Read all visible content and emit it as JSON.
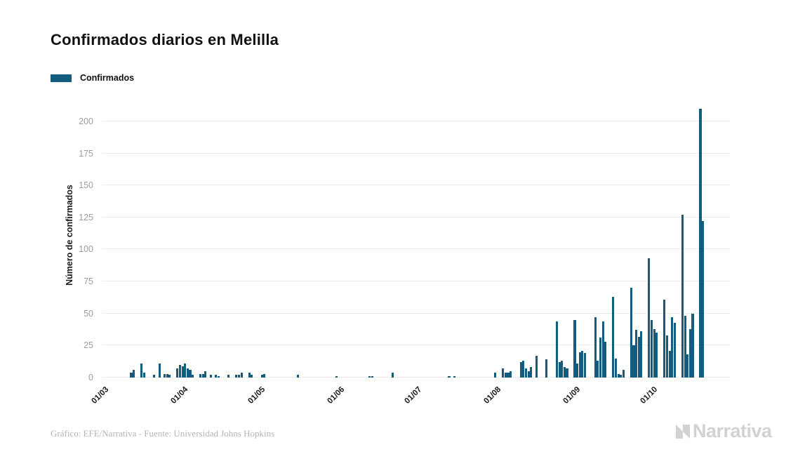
{
  "title": "Confirmados diarios en Melilla",
  "legend": {
    "label": "Confirmados",
    "swatch_color": "#135C7D"
  },
  "footer": {
    "credit": "Gráfico: EFE/Narrativa - Fuente: Universidad Johns Hopkins"
  },
  "logo": {
    "text": "Narrativa"
  },
  "chart_data": {
    "type": "bar",
    "title": "Confirmados diarios en Melilla",
    "xlabel": "",
    "ylabel": "Número de confirmados",
    "series_name": "Confirmados",
    "bar_color": "#135C7D",
    "grid": "horizontal",
    "legend_position": "top-left",
    "ylim": [
      0,
      218
    ],
    "yticks": [
      0,
      25,
      50,
      75,
      100,
      125,
      150,
      175,
      200
    ],
    "x_axis": {
      "description": "daily bars, day_index 0 = 01/03, axis extends to ~245 slots",
      "total_slots": 245,
      "ticks": [
        {
          "label": "01/03",
          "day_index": 0
        },
        {
          "label": "01/04",
          "day_index": 31
        },
        {
          "label": "01/05",
          "day_index": 61
        },
        {
          "label": "01/06",
          "day_index": 92
        },
        {
          "label": "01/07",
          "day_index": 122
        },
        {
          "label": "01/08",
          "day_index": 153
        },
        {
          "label": "01/09",
          "day_index": 184
        },
        {
          "label": "01/10",
          "day_index": 214
        }
      ]
    },
    "points_format": [
      "day_index",
      "date_dd_mm",
      "value"
    ],
    "points": [
      [
        11,
        "12/03",
        4
      ],
      [
        12,
        "13/03",
        6
      ],
      [
        15,
        "16/03",
        11
      ],
      [
        16,
        "17/03",
        4
      ],
      [
        20,
        "21/03",
        2
      ],
      [
        22,
        "23/03",
        11
      ],
      [
        24,
        "25/03",
        3
      ],
      [
        25,
        "26/03",
        3
      ],
      [
        26,
        "27/03",
        2
      ],
      [
        29,
        "30/03",
        7
      ],
      [
        30,
        "31/03",
        10
      ],
      [
        31,
        "01/04",
        9
      ],
      [
        32,
        "02/04",
        11
      ],
      [
        33,
        "03/04",
        7
      ],
      [
        34,
        "04/04",
        6
      ],
      [
        35,
        "05/04",
        2
      ],
      [
        38,
        "08/04",
        3
      ],
      [
        39,
        "09/04",
        3
      ],
      [
        40,
        "10/04",
        5
      ],
      [
        42,
        "12/04",
        2
      ],
      [
        44,
        "14/04",
        2
      ],
      [
        45,
        "15/04",
        1
      ],
      [
        49,
        "19/04",
        2
      ],
      [
        52,
        "22/04",
        2
      ],
      [
        53,
        "23/04",
        2
      ],
      [
        54,
        "24/04",
        4
      ],
      [
        57,
        "27/04",
        4
      ],
      [
        58,
        "28/04",
        2
      ],
      [
        62,
        "02/05",
        2
      ],
      [
        63,
        "03/05",
        3
      ],
      [
        76,
        "16/05",
        2
      ],
      [
        91,
        "31/05",
        1
      ],
      [
        104,
        "13/06",
        1
      ],
      [
        105,
        "14/06",
        1
      ],
      [
        113,
        "22/06",
        4
      ],
      [
        135,
        "14/07",
        1
      ],
      [
        137,
        "16/07",
        1
      ],
      [
        153,
        "01/08",
        4
      ],
      [
        156,
        "04/08",
        7
      ],
      [
        157,
        "05/08",
        4
      ],
      [
        158,
        "06/08",
        4
      ],
      [
        159,
        "07/08",
        5
      ],
      [
        163,
        "11/08",
        12
      ],
      [
        164,
        "12/08",
        13
      ],
      [
        165,
        "13/08",
        7
      ],
      [
        166,
        "14/08",
        5
      ],
      [
        167,
        "15/08",
        8
      ],
      [
        169,
        "17/08",
        17
      ],
      [
        173,
        "21/08",
        14
      ],
      [
        177,
        "25/08",
        44
      ],
      [
        178,
        "26/08",
        12
      ],
      [
        179,
        "27/08",
        13
      ],
      [
        180,
        "28/08",
        8
      ],
      [
        181,
        "29/08",
        7
      ],
      [
        184,
        "01/09",
        45
      ],
      [
        185,
        "02/09",
        11
      ],
      [
        186,
        "03/09",
        20
      ],
      [
        187,
        "04/09",
        21
      ],
      [
        188,
        "05/09",
        19
      ],
      [
        192,
        "09/09",
        47
      ],
      [
        193,
        "10/09",
        13
      ],
      [
        194,
        "11/09",
        31
      ],
      [
        195,
        "12/09",
        44
      ],
      [
        196,
        "13/09",
        28
      ],
      [
        199,
        "16/09",
        63
      ],
      [
        200,
        "17/09",
        15
      ],
      [
        201,
        "18/09",
        3
      ],
      [
        202,
        "19/09",
        2
      ],
      [
        203,
        "20/09",
        6
      ],
      [
        206,
        "23/09",
        70
      ],
      [
        207,
        "24/09",
        25
      ],
      [
        208,
        "25/09",
        37
      ],
      [
        209,
        "26/09",
        32
      ],
      [
        210,
        "27/09",
        36
      ],
      [
        213,
        "30/09",
        93
      ],
      [
        214,
        "01/10",
        45
      ],
      [
        215,
        "02/10",
        38
      ],
      [
        216,
        "03/10",
        35
      ],
      [
        219,
        "06/10",
        61
      ],
      [
        220,
        "07/10",
        33
      ],
      [
        221,
        "08/10",
        21
      ],
      [
        222,
        "09/10",
        47
      ],
      [
        223,
        "10/10",
        43
      ],
      [
        226,
        "13/10",
        127
      ],
      [
        227,
        "14/10",
        48
      ],
      [
        228,
        "15/10",
        18
      ],
      [
        229,
        "16/10",
        38
      ],
      [
        230,
        "17/10",
        50
      ],
      [
        233,
        "20/10",
        210
      ],
      [
        234,
        "21/10",
        122
      ]
    ]
  }
}
